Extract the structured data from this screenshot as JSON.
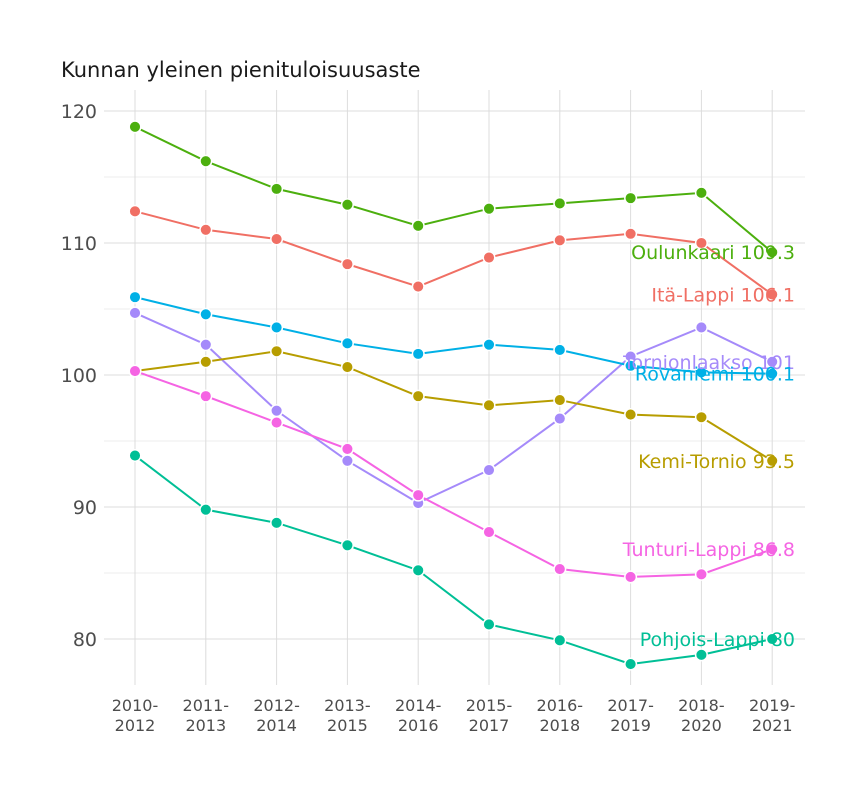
{
  "chart_data": {
    "type": "line",
    "title": "Kunnan yleinen pienituloisuusaste",
    "xlabel": "",
    "ylabel": "",
    "ylim": [
      76.5,
      121.5
    ],
    "yticks": [
      80,
      90,
      100,
      110,
      120
    ],
    "grid": true,
    "legend": "none",
    "x": [
      "2010-2012",
      "2011-2013",
      "2012-2014",
      "2013-2015",
      "2014-2016",
      "2015-2017",
      "2016-2018",
      "2017-2019",
      "2018-2020",
      "2019-2021"
    ],
    "series": [
      {
        "name": "Oulunkaari",
        "end_label": "Oulunkaari 109.3",
        "color": "#4caf0e",
        "values": [
          118.8,
          116.2,
          114.1,
          112.9,
          111.3,
          112.6,
          113.0,
          113.4,
          113.8,
          109.3
        ]
      },
      {
        "name": "Itä-Lappi",
        "end_label": "Itä-Lappi 106.1",
        "color": "#f06f64",
        "values": [
          112.4,
          111.0,
          110.3,
          108.4,
          106.7,
          108.9,
          110.2,
          110.7,
          110.0,
          106.1
        ]
      },
      {
        "name": "Tornionlaakso",
        "end_label": "Tornionlaakso 101",
        "color": "#a58afa",
        "values": [
          104.7,
          102.3,
          97.3,
          93.5,
          90.3,
          92.8,
          96.7,
          101.4,
          103.6,
          101.0
        ]
      },
      {
        "name": "Rovaniemi",
        "end_label": "Rovaniemi 100.1",
        "color": "#00b0e6",
        "values": [
          105.9,
          104.6,
          103.6,
          102.4,
          101.6,
          102.3,
          101.9,
          100.7,
          100.2,
          100.1
        ]
      },
      {
        "name": "Kemi-Tornio",
        "end_label": "Kemi-Tornio 93.5",
        "color": "#b79d00",
        "values": [
          100.3,
          101.0,
          101.8,
          100.6,
          98.4,
          97.7,
          98.1,
          97.0,
          96.8,
          93.5
        ]
      },
      {
        "name": "Tunturi-Lappi",
        "end_label": "Tunturi-Lappi 86.8",
        "color": "#f564e3",
        "values": [
          100.3,
          98.4,
          96.4,
          94.4,
          90.9,
          88.1,
          85.3,
          84.7,
          84.9,
          86.8
        ]
      },
      {
        "name": "Pohjois-Lappi",
        "end_label": "Pohjois-Lappi 80",
        "color": "#00bf96",
        "values": [
          93.9,
          89.8,
          88.8,
          87.1,
          85.2,
          81.1,
          79.9,
          78.1,
          78.8,
          80.0
        ]
      }
    ]
  }
}
